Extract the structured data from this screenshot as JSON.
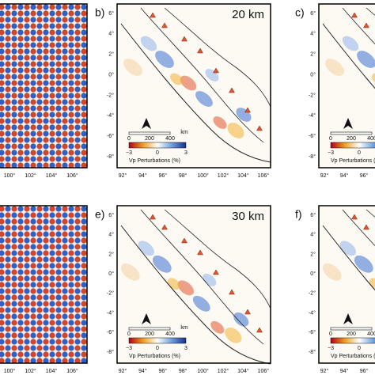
{
  "panels": [
    {
      "x_ticks": [
        "100°",
        "102°",
        "104°",
        "106°"
      ]
    },
    {
      "label": "b)",
      "depth": "20 km",
      "x_ticks": [
        "92°",
        "94°",
        "96°",
        "98°",
        "100°",
        "102°",
        "104°",
        "106°"
      ],
      "y_ticks": [
        "6°",
        "4°",
        "2°",
        "0°",
        "-2°",
        "-4°",
        "-6°",
        "-8°"
      ],
      "scale": [
        "0",
        "200",
        "400"
      ],
      "scale_unit": "km",
      "colorbar_ticks": [
        "−3",
        "0",
        "3"
      ],
      "colorbar_label": "Vp Perturbations (%)"
    },
    {
      "label": "c)",
      "x_ticks": [
        "92°",
        "94°",
        "96°"
      ],
      "y_ticks": [
        "6°",
        "4°",
        "2°",
        "0°",
        "-2°",
        "-4°",
        "-6°",
        "-8°"
      ],
      "scale": [
        "0",
        "200",
        "400"
      ],
      "colorbar_ticks": [
        "−3",
        "0"
      ],
      "colorbar_label": "Vp Perturbations (%)"
    },
    {
      "x_ticks": [
        "100°",
        "102°",
        "104°",
        "106°"
      ]
    },
    {
      "label": "e)",
      "depth": "30 km",
      "x_ticks": [
        "92°",
        "94°",
        "96°",
        "98°",
        "100°",
        "102°",
        "104°",
        "106°"
      ],
      "y_ticks": [
        "6°",
        "4°",
        "2°",
        "0°",
        "-2°",
        "-4°",
        "-6°",
        "-8°"
      ],
      "scale": [
        "0",
        "200",
        "400"
      ],
      "scale_unit": "km",
      "colorbar_ticks": [
        "−3",
        "0",
        "3"
      ],
      "colorbar_label": "Vp Perturbations (%)"
    },
    {
      "label": "f)",
      "x_ticks": [
        "92°",
        "94°",
        "96°"
      ],
      "y_ticks": [
        "6°",
        "4°",
        "2°",
        "0°",
        "-2°",
        "-4°",
        "-6°",
        "-8°"
      ],
      "scale": [
        "0",
        "200",
        "400"
      ],
      "colorbar_ticks": [
        "−3",
        "0"
      ],
      "colorbar_label": "Vp Perturbations (%)"
    }
  ]
}
